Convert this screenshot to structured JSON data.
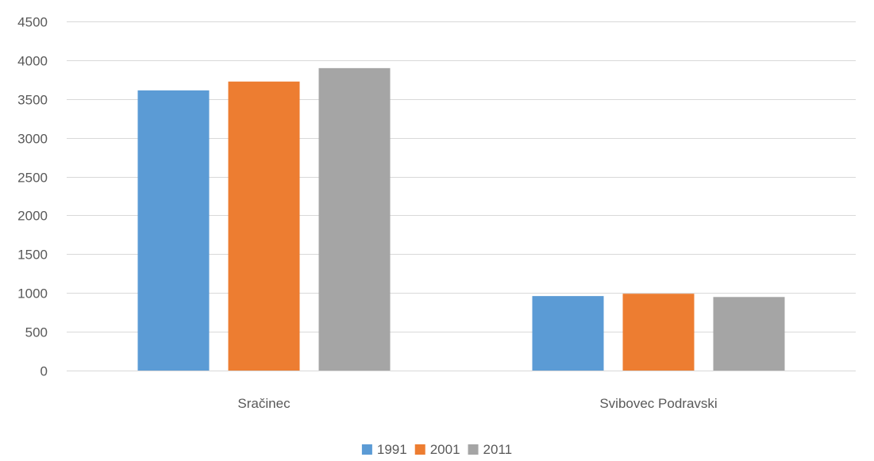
{
  "colors": {
    "background": "#ffffff",
    "gridline": "#d9d9d9",
    "axis_line": "#d9d9d9",
    "text": "#595959"
  },
  "chart_data": {
    "type": "bar",
    "title": "",
    "xlabel": "",
    "ylabel": "",
    "categories": [
      "Sračinec",
      "Svibovec Podravski"
    ],
    "series": [
      {
        "name": "1991",
        "color": "#5b9bd5",
        "values": [
          3611,
          960
        ]
      },
      {
        "name": "2001",
        "color": "#ed7d31",
        "values": [
          3725,
          990
        ]
      },
      {
        "name": "2011",
        "color": "#a5a5a5",
        "values": [
          3898,
          948
        ]
      }
    ],
    "ylim": [
      0,
      4500
    ],
    "yticks": [
      0,
      500,
      1000,
      1500,
      2000,
      2500,
      3000,
      3500,
      4000,
      4500
    ],
    "grid": true,
    "legend": "bottom-center"
  }
}
